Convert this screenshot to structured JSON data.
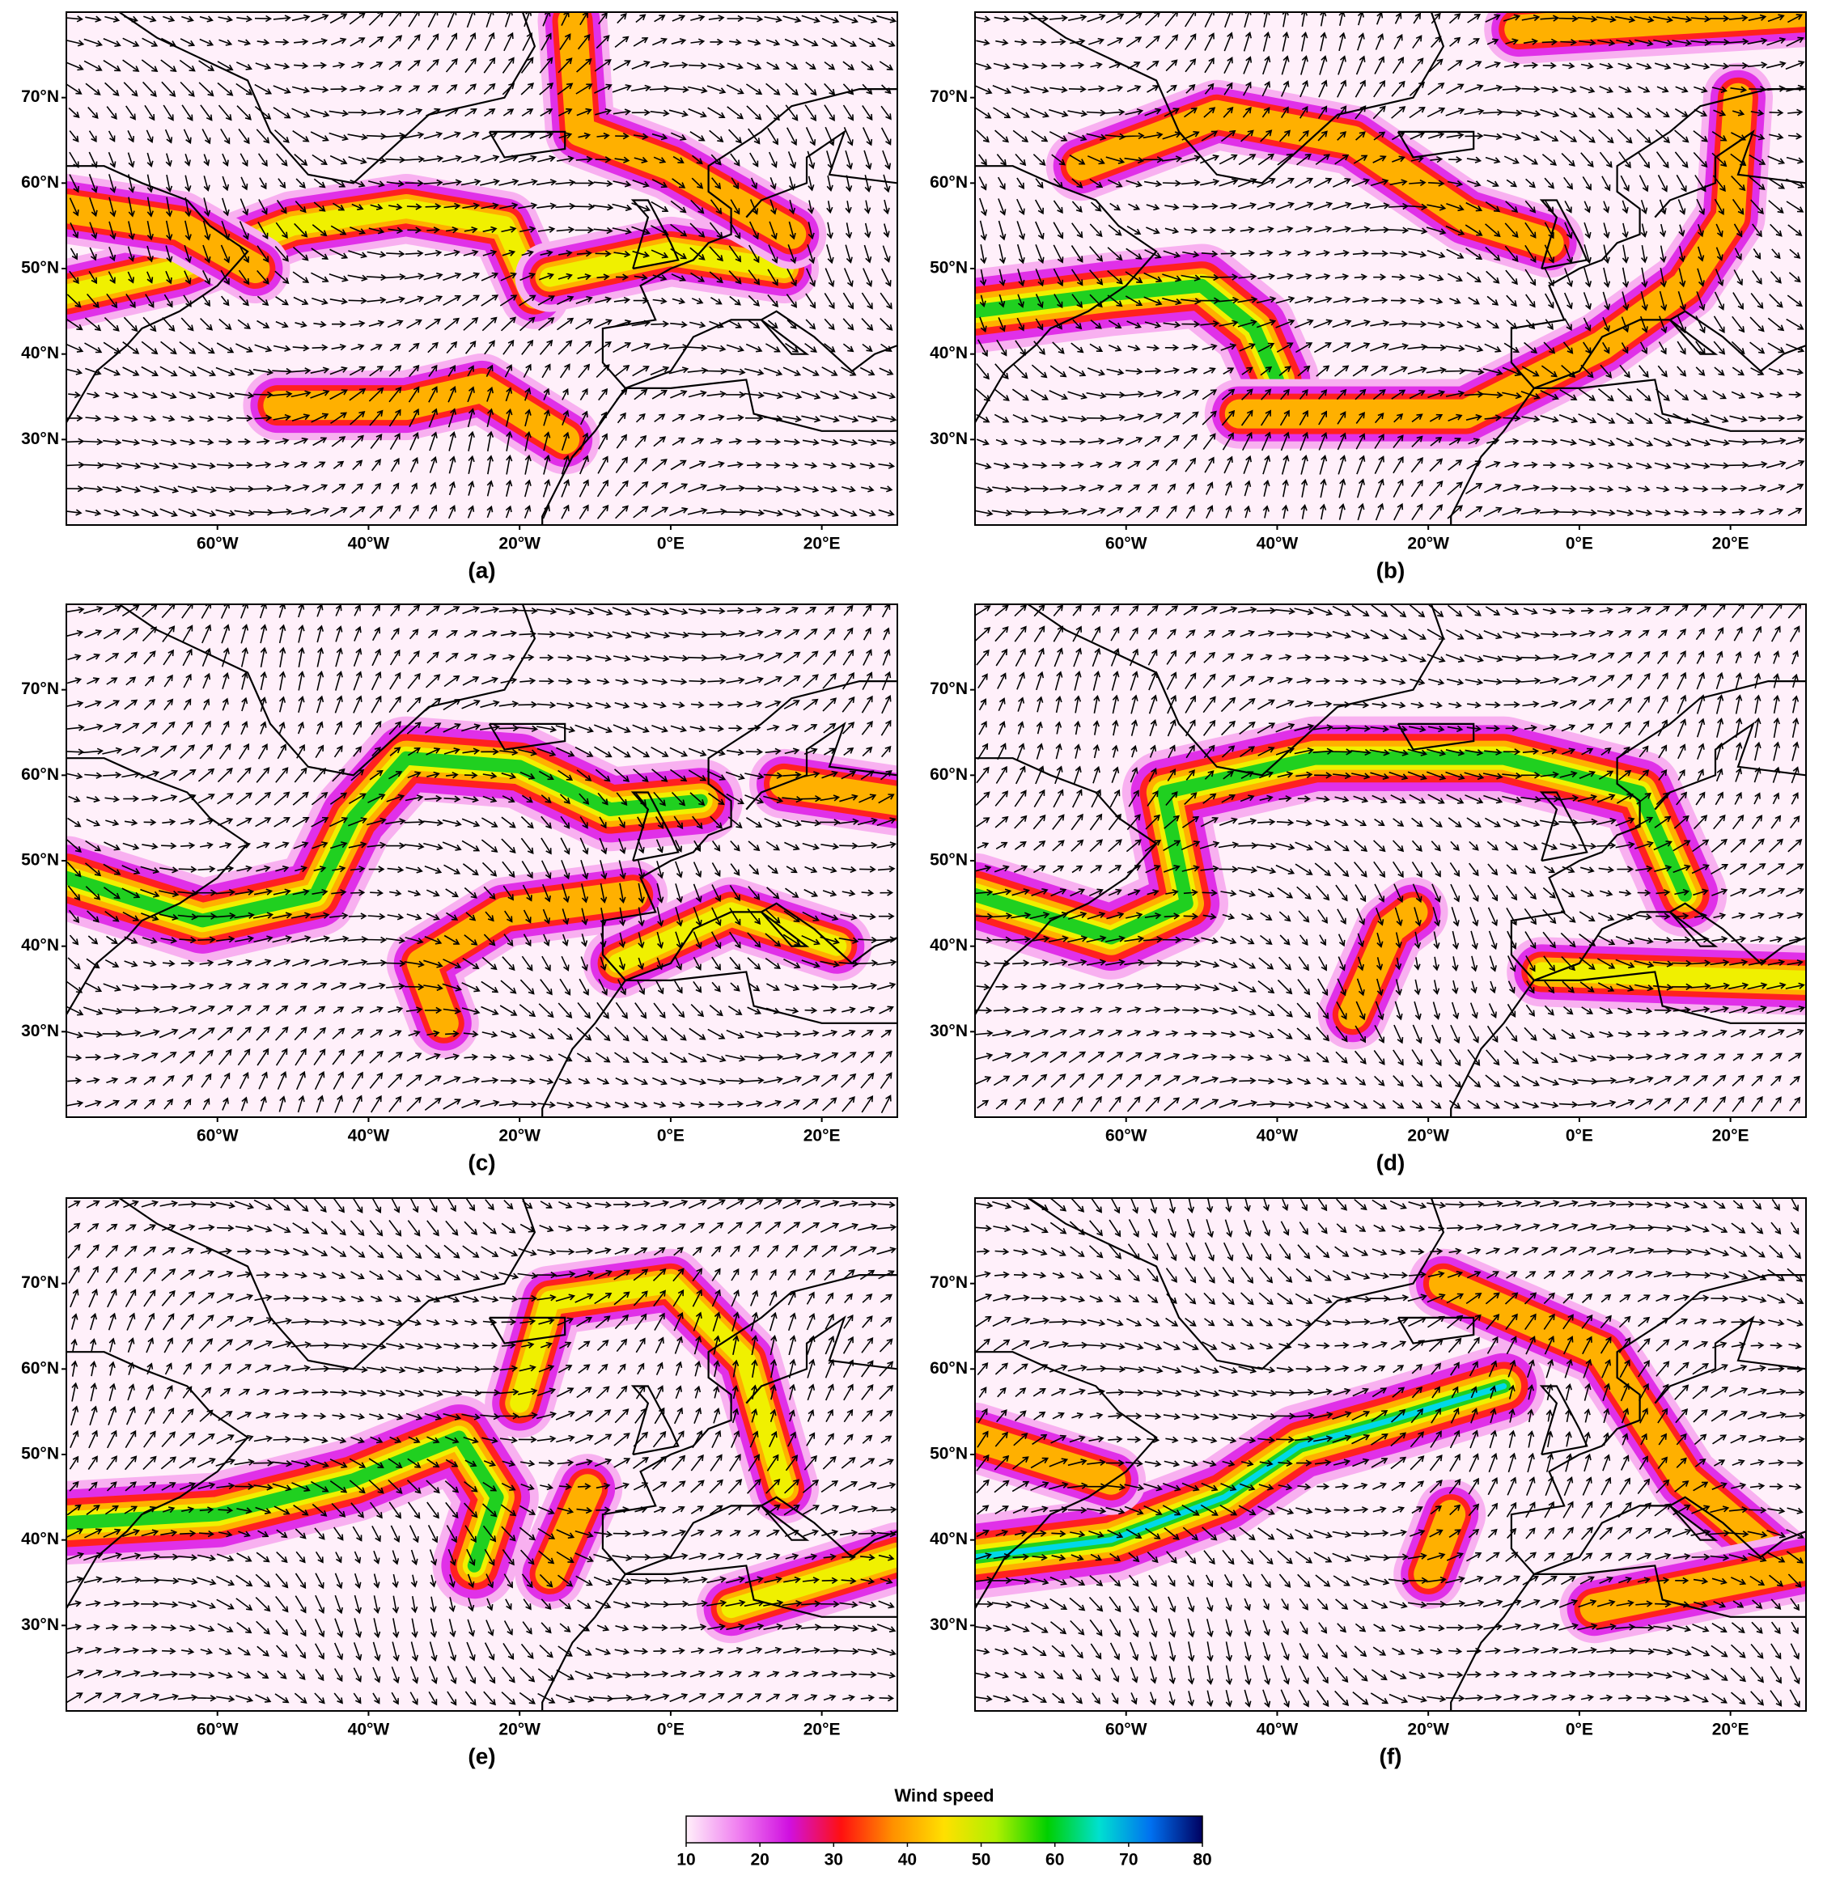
{
  "panels": [
    {
      "label": "(a)"
    },
    {
      "label": "(b)"
    },
    {
      "label": "(c)"
    },
    {
      "label": "(d)"
    },
    {
      "label": "(e)"
    },
    {
      "label": "(f)"
    }
  ],
  "axes": {
    "xlim": [
      -80,
      30
    ],
    "ylim": [
      20,
      80
    ],
    "xticks": [
      {
        "value": -60,
        "label": "60°W"
      },
      {
        "value": -40,
        "label": "40°W"
      },
      {
        "value": -20,
        "label": "20°W"
      },
      {
        "value": 0,
        "label": "0°E"
      },
      {
        "value": 20,
        "label": "20°E"
      }
    ],
    "yticks": [
      {
        "value": 30,
        "label": "30°N"
      },
      {
        "value": 40,
        "label": "40°N"
      },
      {
        "value": 50,
        "label": "50°N"
      },
      {
        "value": 60,
        "label": "60°N"
      },
      {
        "value": 70,
        "label": "70°N"
      }
    ]
  },
  "colorbar": {
    "label": "Wind speed",
    "range": [
      10,
      80
    ],
    "ticks": [
      10,
      20,
      30,
      40,
      50,
      60,
      70,
      80
    ],
    "colors": [
      "#fff0fa",
      "#f080f0",
      "#d010e0",
      "#ff1010",
      "#ff9000",
      "#ffe000",
      "#b0f000",
      "#00d000",
      "#00e0d0",
      "#0070f0",
      "#000060"
    ]
  }
}
